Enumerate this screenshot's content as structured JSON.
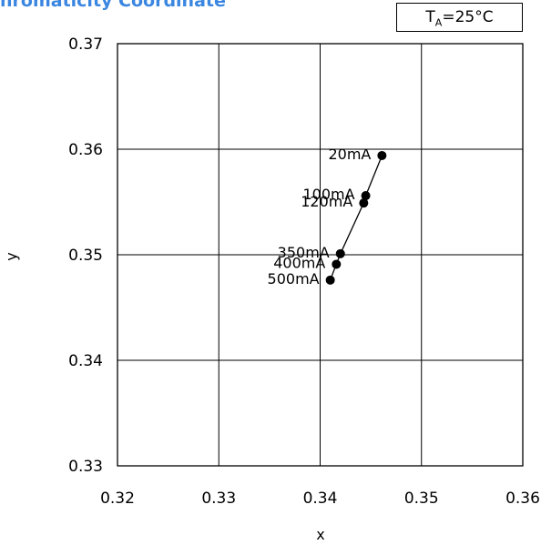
{
  "chart_data": {
    "type": "scatter",
    "title": "hromaticity Coordinate",
    "annotation": {
      "T": "T",
      "sub": "A",
      "rest": "=25°C"
    },
    "xlabel": "x",
    "ylabel": "y",
    "xlim": [
      0.32,
      0.36
    ],
    "ylim": [
      0.33,
      0.37
    ],
    "x_ticks": [
      "0.32",
      "0.33",
      "0.34",
      "0.35",
      "0.36"
    ],
    "y_ticks": [
      "0.33",
      "0.34",
      "0.35",
      "0.36",
      "0.37"
    ],
    "grid": true,
    "points": [
      {
        "label": "20mA",
        "x": 0.3461,
        "y": 0.3594
      },
      {
        "label": "100mA",
        "x": 0.3445,
        "y": 0.3556
      },
      {
        "label": "120mA",
        "x": 0.3443,
        "y": 0.3549
      },
      {
        "label": "350mA",
        "x": 0.342,
        "y": 0.3501
      },
      {
        "label": "400mA",
        "x": 0.3416,
        "y": 0.3491
      },
      {
        "label": "500mA",
        "x": 0.341,
        "y": 0.3476
      }
    ]
  }
}
